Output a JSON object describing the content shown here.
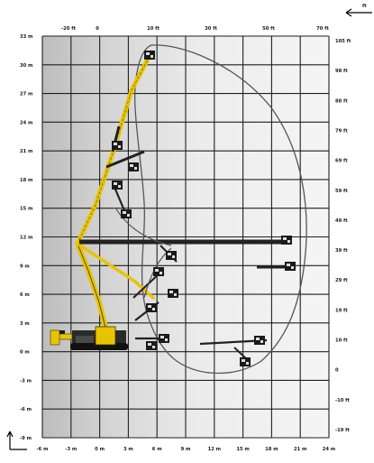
{
  "diagram": {
    "axes": {
      "x_bottom_m": [
        -6,
        -3,
        0,
        3,
        6,
        9,
        12,
        15,
        18,
        21,
        24
      ],
      "x_bottom_unit": "m",
      "y_left_m": [
        33,
        30,
        27,
        24,
        21,
        18,
        15,
        12,
        9,
        6,
        3,
        0,
        -3,
        -6,
        -9
      ],
      "y_left_unit": "m",
      "x_top_ft": [
        "-20 ft",
        "0",
        "10 ft",
        "30 ft",
        "50 ft",
        "70 ft"
      ],
      "y_right_ft": [
        "105 ft",
        "98 ft",
        "88 ft",
        "79 ft",
        "69 ft",
        "59 ft",
        "49 ft",
        "39 ft",
        "29 ft",
        "19 ft",
        "10 ft",
        "0",
        "-10 ft",
        "-19 ft"
      ]
    },
    "ranges": {
      "x": [
        -6,
        24
      ],
      "y": [
        -9,
        33
      ]
    },
    "boom_positions": 12,
    "colors": {
      "boom_yellow": "#e8c400",
      "boom_dark": "#222222",
      "envelope": "#555555",
      "grid": "#1f1f1f",
      "shade_dark": "#c4c4c4",
      "shade_light": "#f2f2f2"
    },
    "icons": {
      "top_right": "axis-arrow-icon",
      "bottom_left": "axis-arrow-icon",
      "basket": "platform-basket-icon"
    }
  }
}
